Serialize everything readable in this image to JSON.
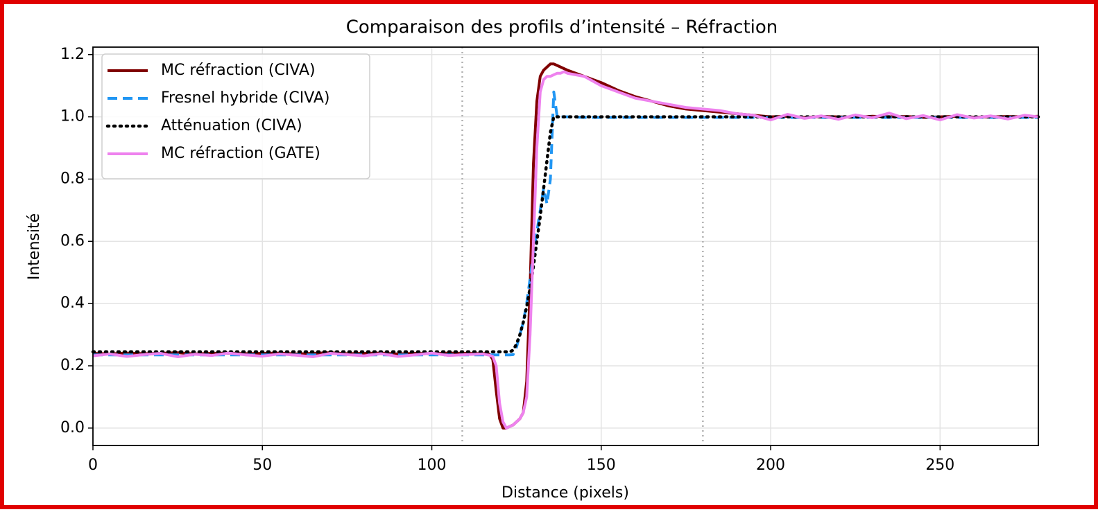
{
  "chart_data": {
    "type": "line",
    "title": "Comparaison des profils d’intensité – Réfraction",
    "x_label": "Distance (pixels)",
    "y_label": "Intensité",
    "xlim": [
      0,
      279
    ],
    "ylim": [
      -0.056,
      1.224
    ],
    "xticks": [
      0,
      50,
      100,
      150,
      200,
      250
    ],
    "yticks": [
      {
        "value": 0,
        "label": "0.0"
      },
      0.2,
      0.4,
      0.6,
      0.8,
      {
        "value": 1,
        "label": "1.0"
      },
      1.2
    ],
    "grid": true,
    "legend": "upper left",
    "vlines": [
      109,
      180
    ],
    "x": [
      0,
      5,
      10,
      15,
      20,
      25,
      30,
      35,
      40,
      45,
      50,
      55,
      60,
      65,
      70,
      75,
      80,
      85,
      90,
      95,
      100,
      105,
      110,
      115,
      116,
      117,
      118,
      119,
      120,
      121,
      122,
      123,
      124,
      125,
      126,
      127,
      128,
      129,
      130,
      131,
      132,
      133,
      134,
      135,
      136,
      137,
      138,
      139,
      140,
      145,
      150,
      155,
      160,
      165,
      170,
      175,
      180,
      185,
      190,
      195,
      200,
      205,
      210,
      215,
      220,
      225,
      230,
      235,
      240,
      245,
      250,
      255,
      260,
      265,
      270,
      275,
      279
    ],
    "series": [
      {
        "name": "MC réfraction (CIVA)",
        "color": "#800000",
        "linestyle": "solid",
        "values": [
          0.24,
          0.238,
          0.241,
          0.239,
          0.24,
          0.242,
          0.238,
          0.24,
          0.241,
          0.239,
          0.24,
          0.241,
          0.238,
          0.24,
          0.242,
          0.239,
          0.24,
          0.241,
          0.238,
          0.24,
          0.239,
          0.241,
          0.24,
          0.239,
          0.24,
          0.238,
          0.22,
          0.12,
          0.03,
          0.0,
          0.0,
          0.005,
          0.01,
          0.02,
          0.03,
          0.05,
          0.15,
          0.45,
          0.85,
          1.05,
          1.13,
          1.15,
          1.16,
          1.17,
          1.17,
          1.165,
          1.16,
          1.155,
          1.15,
          1.13,
          1.11,
          1.085,
          1.065,
          1.05,
          1.035,
          1.025,
          1.02,
          1.015,
          1.01,
          1.005,
          1.0,
          1.002,
          0.998,
          1.001,
          1.0,
          0.999,
          1.002,
          1.0,
          1.001,
          0.998,
          1.0,
          1.002,
          0.999,
          1.0,
          1.001,
          1.0,
          1.002
        ]
      },
      {
        "name": "Fresnel hybride (CIVA)",
        "color": "#2196f3",
        "linestyle": "dashed",
        "values": [
          0.235,
          0.235,
          0.235,
          0.235,
          0.235,
          0.235,
          0.235,
          0.235,
          0.235,
          0.235,
          0.235,
          0.235,
          0.235,
          0.235,
          0.235,
          0.235,
          0.235,
          0.235,
          0.235,
          0.235,
          0.235,
          0.235,
          0.235,
          0.235,
          0.235,
          0.235,
          0.235,
          0.235,
          0.235,
          0.235,
          0.235,
          0.235,
          0.236,
          0.26,
          0.3,
          0.34,
          0.4,
          0.48,
          0.56,
          0.63,
          0.7,
          0.77,
          0.72,
          0.8,
          1.08,
          1.0,
          1.0,
          1.0,
          1.0,
          0.998,
          0.998,
          0.998,
          0.998,
          0.998,
          0.998,
          0.998,
          0.998,
          0.998,
          0.998,
          0.998,
          0.998,
          0.998,
          0.998,
          0.998,
          0.998,
          0.998,
          0.998,
          0.998,
          0.998,
          0.998,
          0.998,
          0.998,
          0.998,
          0.998,
          0.998,
          0.998,
          0.998
        ]
      },
      {
        "name": "Atténuation (CIVA)",
        "color": "#000000",
        "linestyle": "dotted",
        "values": [
          0.245,
          0.245,
          0.245,
          0.245,
          0.245,
          0.245,
          0.245,
          0.245,
          0.245,
          0.245,
          0.245,
          0.245,
          0.245,
          0.245,
          0.245,
          0.245,
          0.245,
          0.245,
          0.245,
          0.245,
          0.245,
          0.245,
          0.245,
          0.245,
          0.245,
          0.245,
          0.245,
          0.245,
          0.245,
          0.245,
          0.245,
          0.245,
          0.25,
          0.27,
          0.3,
          0.34,
          0.39,
          0.45,
          0.52,
          0.6,
          0.68,
          0.77,
          0.86,
          0.95,
          1.0,
          1.0,
          1.0,
          1.0,
          1.0,
          1.0,
          1.0,
          1.0,
          1.0,
          1.0,
          1.0,
          1.0,
          1.0,
          1.0,
          1.0,
          1.0,
          1.0,
          1.0,
          1.0,
          1.0,
          1.0,
          1.0,
          1.0,
          1.0,
          1.0,
          1.0,
          1.0,
          1.0,
          1.0,
          1.0,
          1.0,
          1.0,
          1.0
        ]
      },
      {
        "name": "MC réfraction (GATE)",
        "color": "#ee82ee",
        "linestyle": "solid",
        "values": [
          0.232,
          0.238,
          0.23,
          0.236,
          0.24,
          0.229,
          0.237,
          0.233,
          0.241,
          0.235,
          0.231,
          0.238,
          0.234,
          0.229,
          0.24,
          0.236,
          0.232,
          0.239,
          0.23,
          0.235,
          0.241,
          0.233,
          0.236,
          0.238,
          0.236,
          0.234,
          0.23,
          0.2,
          0.08,
          0.02,
          0.0,
          0.005,
          0.01,
          0.02,
          0.03,
          0.05,
          0.1,
          0.3,
          0.6,
          0.9,
          1.08,
          1.12,
          1.13,
          1.13,
          1.135,
          1.14,
          1.14,
          1.145,
          1.14,
          1.13,
          1.1,
          1.08,
          1.06,
          1.05,
          1.04,
          1.03,
          1.025,
          1.02,
          1.01,
          1.005,
          0.99,
          1.008,
          0.995,
          1.003,
          0.992,
          1.006,
          0.997,
          1.012,
          0.994,
          1.004,
          0.99,
          1.007,
          0.996,
          1.003,
          0.993,
          1.005,
          1.0
        ]
      }
    ]
  }
}
